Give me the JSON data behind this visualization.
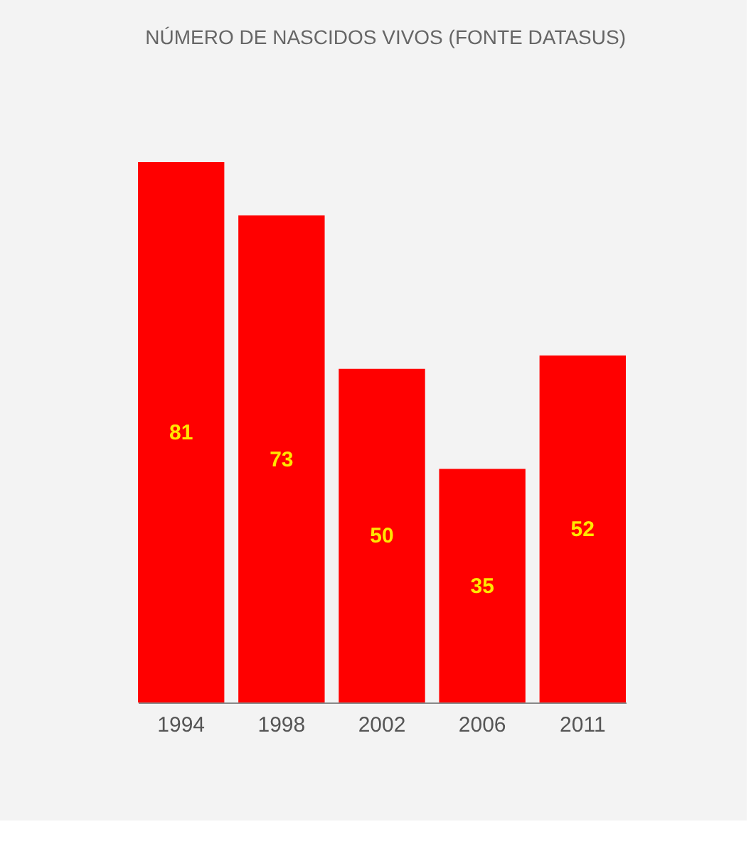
{
  "chart_data": {
    "type": "bar",
    "title": "NÚMERO DE NASCIDOS VIVOS (FONTE DATASUS)",
    "categories": [
      "1994",
      "1998",
      "2002",
      "2006",
      "2011"
    ],
    "values": [
      81,
      73,
      50,
      35,
      52
    ],
    "color": "#ff0000",
    "data_labels": true,
    "grid": false,
    "tick_labels": "x"
  }
}
